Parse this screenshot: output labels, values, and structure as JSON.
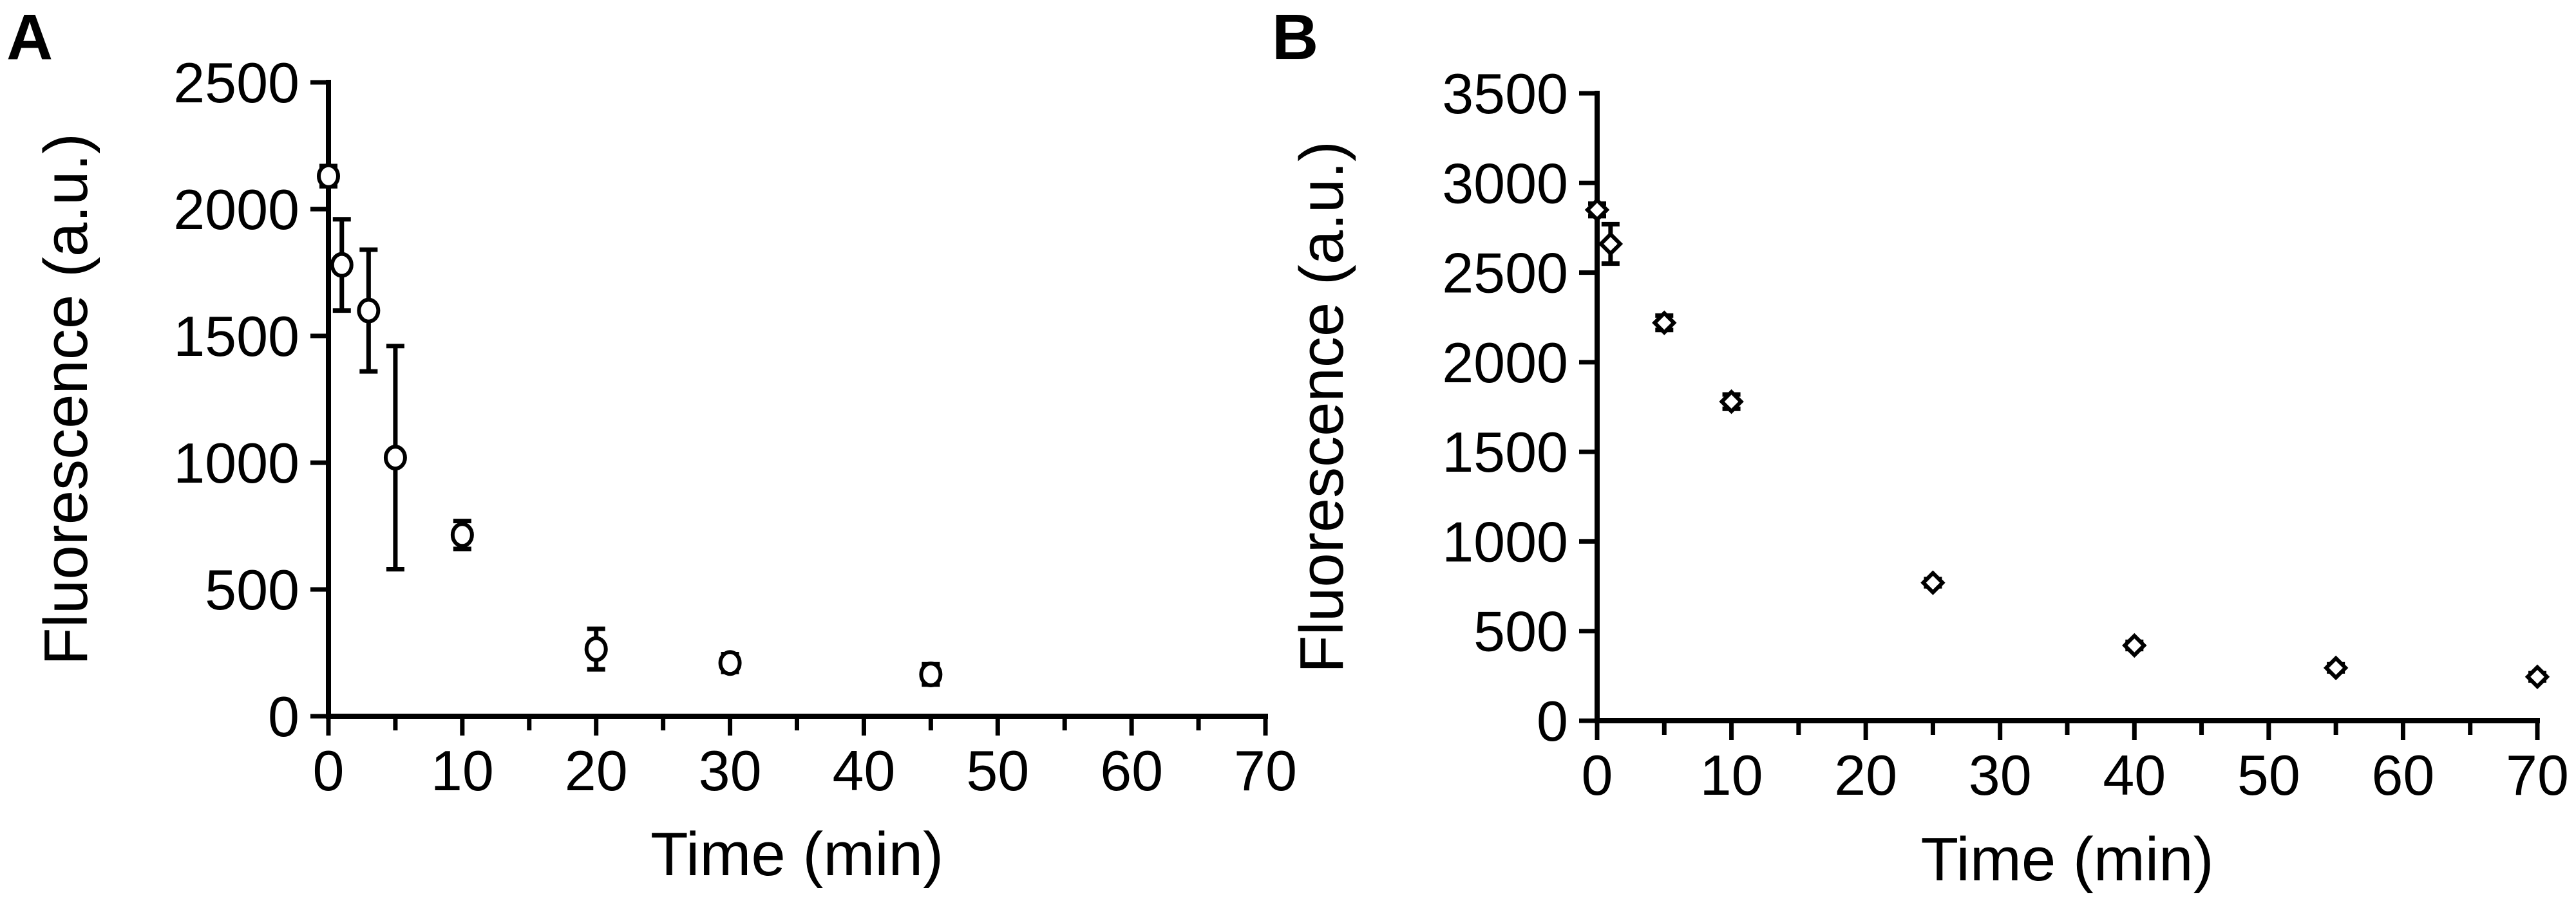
{
  "chart_data": [
    {
      "type": "scatter",
      "panel_label": "A",
      "xlabel": "Time (min)",
      "ylabel": "Fluorescence (a.u.)",
      "xlim": [
        0,
        70
      ],
      "ylim": [
        0,
        2500
      ],
      "xticks": [
        0,
        10,
        20,
        30,
        40,
        50,
        60,
        70
      ],
      "yticks": [
        0,
        500,
        1000,
        1500,
        2000,
        2500
      ],
      "marker": "circle",
      "grid": false,
      "series": [
        {
          "x": [
            0,
            1,
            3,
            5,
            10,
            20,
            30,
            45
          ],
          "y": [
            2130,
            1780,
            1600,
            1020,
            715,
            265,
            210,
            165
          ],
          "error": [
            40,
            180,
            240,
            440,
            55,
            80,
            35,
            40
          ]
        }
      ]
    },
    {
      "type": "scatter",
      "panel_label": "B",
      "xlabel": "Time (min)",
      "ylabel": "Fluorescence (a.u.)",
      "xlim": [
        0,
        70
      ],
      "ylim": [
        0,
        3500
      ],
      "xticks": [
        0,
        10,
        20,
        30,
        40,
        50,
        60,
        70
      ],
      "yticks": [
        0,
        500,
        1000,
        1500,
        2000,
        2500,
        3000,
        3500
      ],
      "marker": "diamond",
      "grid": false,
      "series": [
        {
          "x": [
            0,
            1,
            5,
            10,
            25,
            40,
            55,
            70
          ],
          "y": [
            2850,
            2660,
            2220,
            1780,
            770,
            420,
            295,
            245
          ],
          "error": [
            35,
            110,
            40,
            40,
            20,
            20,
            20,
            20
          ]
        }
      ]
    }
  ]
}
